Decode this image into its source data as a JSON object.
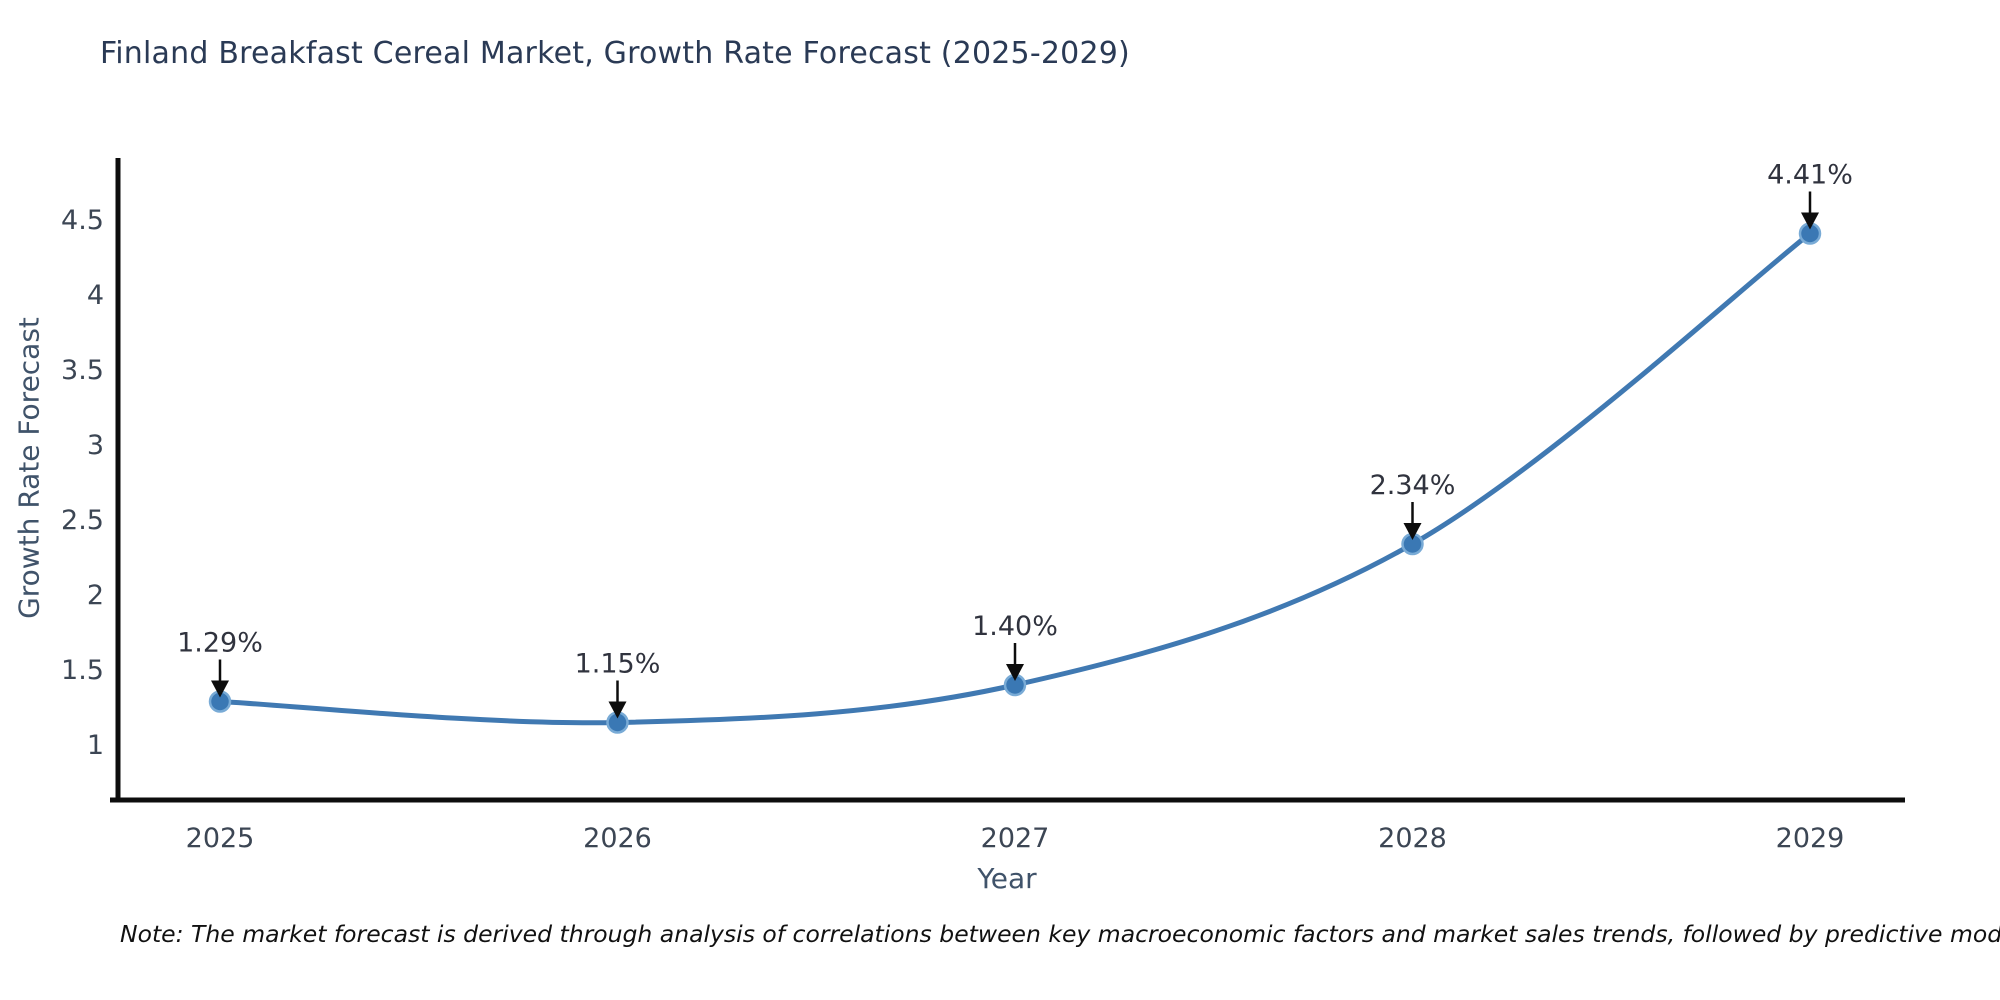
{
  "title": "Finland Breakfast Cereal Market, Growth Rate Forecast (2025-2029)",
  "footnote": "Note: The market forecast is derived through analysis of correlations between key macroeconomic factors and market sales trends, followed by predictive modeling to project future sales",
  "chart_data": {
    "type": "line",
    "title": "Finland Breakfast Cereal Market, Growth Rate Forecast (2025-2029)",
    "x": [
      2025,
      2026,
      2027,
      2028,
      2029
    ],
    "xlabel": "Year",
    "ylabel": "Growth Rate Forecast",
    "series": [
      {
        "name": "Growth Rate Forecast",
        "values": [
          1.29,
          1.15,
          1.4,
          2.34,
          4.41
        ]
      }
    ],
    "point_labels": [
      "1.29%",
      "1.15%",
      "1.40%",
      "2.34%",
      "4.41%"
    ],
    "yticks": [
      "1",
      "1.5",
      "2",
      "2.5",
      "3",
      "3.5",
      "4",
      "4.5"
    ],
    "ytick_values": [
      1,
      1.5,
      2,
      2.5,
      3,
      3.5,
      4,
      4.5
    ],
    "ylim": [
      0.63,
      4.93
    ],
    "grid": false,
    "legend_position": "none",
    "line_shape": "spline",
    "colors": {
      "line": "#4079b2",
      "marker_fill": "#3a78b4",
      "marker_edge": "#79abd6",
      "arrow": "#0d0d0d",
      "annotation_text": "#30333e",
      "tick_label": "#3c4654",
      "axis_label": "#40536a",
      "title": "#2a3a55",
      "spine": "#0d0d0d",
      "background": "#ffffff"
    }
  }
}
